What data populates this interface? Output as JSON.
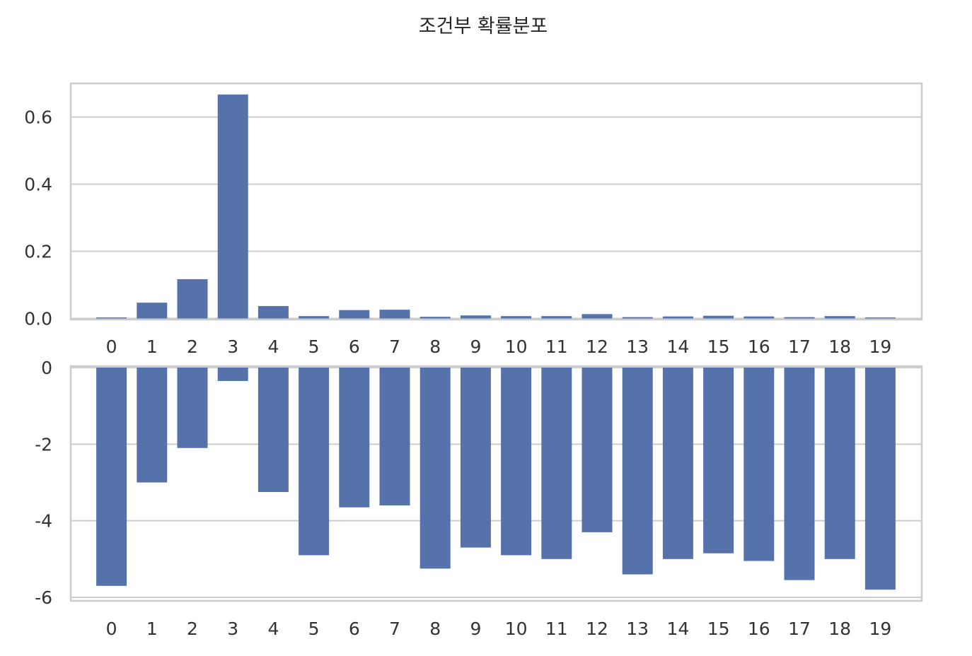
{
  "chart_data": [
    {
      "type": "bar",
      "title": "조건부 확률분포",
      "color": "#5572ab",
      "categories": [
        "0",
        "1",
        "2",
        "3",
        "4",
        "5",
        "6",
        "7",
        "8",
        "9",
        "10",
        "11",
        "12",
        "13",
        "14",
        "15",
        "16",
        "17",
        "18",
        "19"
      ],
      "values": [
        0.003,
        0.047,
        0.117,
        0.667,
        0.037,
        0.007,
        0.025,
        0.026,
        0.005,
        0.009,
        0.007,
        0.007,
        0.013,
        0.004,
        0.006,
        0.008,
        0.006,
        0.004,
        0.007,
        0.003
      ],
      "ylim": [
        0,
        0.7
      ],
      "yticks": [
        0.0,
        0.2,
        0.4,
        0.6
      ],
      "ytick_labels": [
        "0.0",
        "0.2",
        "0.4",
        "0.6"
      ],
      "grid": true
    },
    {
      "type": "bar",
      "color": "#5572ab",
      "categories": [
        "0",
        "1",
        "2",
        "3",
        "4",
        "5",
        "6",
        "7",
        "8",
        "9",
        "10",
        "11",
        "12",
        "13",
        "14",
        "15",
        "16",
        "17",
        "18",
        "19"
      ],
      "values": [
        -5.7,
        -3.0,
        -2.1,
        -0.35,
        -3.25,
        -4.9,
        -3.65,
        -3.6,
        -5.25,
        -4.7,
        -4.9,
        -5.0,
        -4.3,
        -5.4,
        -5.0,
        -4.85,
        -5.05,
        -5.55,
        -5.0,
        -5.8
      ],
      "ylim": [
        -6.1,
        0
      ],
      "yticks": [
        0,
        -2,
        -4,
        -6
      ],
      "ytick_labels": [
        "0",
        "-2",
        "-4",
        "-6"
      ],
      "grid": true
    }
  ]
}
